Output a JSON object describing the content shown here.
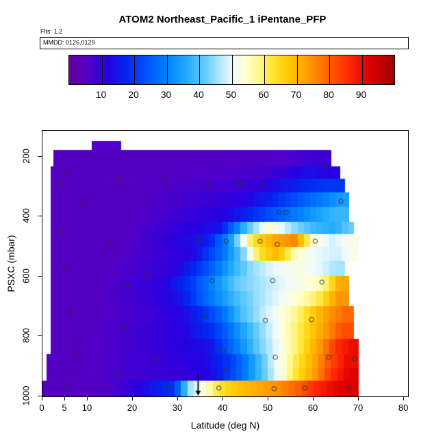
{
  "chart_data": {
    "type": "heatmap",
    "title": "ATOM2 Northeast_Pacific_1 iPentane_PFP",
    "annotations": {
      "flts": "Flts: 1,2",
      "mmdd": "MMDD: 0126,0129"
    },
    "xlabel": "Latitude (deg N)",
    "ylabel": "PSXC (mbar)",
    "xlim": [
      0,
      81.2
    ],
    "ylim": [
      113,
      1005
    ],
    "y_axis_reversed": true,
    "x_ticks": [
      0,
      5,
      10,
      20,
      30,
      40,
      50,
      60,
      70,
      80
    ],
    "y_ticks": [
      200,
      400,
      600,
      800,
      1000
    ],
    "grid": false,
    "legend_position": "top",
    "colorbar": {
      "ticks": [
        10,
        20,
        30,
        40,
        50,
        60,
        70,
        80,
        90
      ],
      "domain": [
        0,
        100
      ],
      "stops": [
        [
          0,
          "#64009B"
        ],
        [
          6,
          "#5000C8"
        ],
        [
          12,
          "#2800E1"
        ],
        [
          18,
          "#0028F0"
        ],
        [
          24,
          "#0055FF"
        ],
        [
          30,
          "#0080FF"
        ],
        [
          36,
          "#22AAFF"
        ],
        [
          42,
          "#66CCFF"
        ],
        [
          46,
          "#A8E4FF"
        ],
        [
          50,
          "#EEFAFF"
        ],
        [
          54,
          "#FFFFD8"
        ],
        [
          58,
          "#FFF890"
        ],
        [
          63,
          "#FFE228"
        ],
        [
          68,
          "#FFC400"
        ],
        [
          74,
          "#FF9800"
        ],
        [
          80,
          "#FF6000"
        ],
        [
          86,
          "#FF2800"
        ],
        [
          92,
          "#E10000"
        ],
        [
          100,
          "#9E0000"
        ]
      ]
    },
    "bands_format": "[pressure_top_mbar, pressure_bottom_mbar, runs[[lat_start_degN, lat_end_degN, value_0_100], ...]]",
    "bands": [
      [
        150,
        180,
        [
          [
            11,
            17.5,
            6
          ]
        ]
      ],
      [
        180,
        235,
        [
          [
            2.5,
            50,
            5
          ],
          [
            50,
            57,
            6
          ],
          [
            57,
            64,
            9
          ]
        ]
      ],
      [
        235,
        275,
        [
          [
            2,
            44,
            5
          ],
          [
            44,
            51,
            7
          ],
          [
            51,
            57,
            11
          ],
          [
            57,
            62,
            14
          ],
          [
            62,
            66,
            12
          ]
        ]
      ],
      [
        275,
        320,
        [
          [
            2,
            42,
            5
          ],
          [
            42,
            49,
            9
          ],
          [
            49,
            55,
            14
          ],
          [
            55,
            61,
            18
          ],
          [
            61,
            67,
            20
          ]
        ]
      ],
      [
        320,
        370,
        [
          [
            2,
            40,
            5
          ],
          [
            40,
            47,
            11
          ],
          [
            47,
            54,
            17
          ],
          [
            54,
            60,
            24
          ],
          [
            60,
            65,
            30
          ],
          [
            65,
            68,
            34
          ]
        ]
      ],
      [
        370,
        420,
        [
          [
            2,
            38,
            5
          ],
          [
            38,
            45,
            13
          ],
          [
            45,
            51,
            20
          ],
          [
            51,
            57,
            27
          ],
          [
            57,
            62,
            33
          ],
          [
            62,
            68,
            38
          ]
        ]
      ],
      [
        420,
        460,
        [
          [
            2,
            36,
            5
          ],
          [
            36,
            43,
            15
          ],
          [
            43,
            48,
            40
          ],
          [
            48,
            53,
            55
          ],
          [
            53,
            58,
            45
          ],
          [
            58,
            63,
            38
          ],
          [
            63,
            67,
            36
          ],
          [
            67,
            69,
            42
          ]
        ]
      ],
      [
        460,
        505,
        [
          [
            2,
            34,
            5
          ],
          [
            34,
            40,
            16
          ],
          [
            40,
            44,
            35
          ],
          [
            44,
            49,
            62
          ],
          [
            49,
            54,
            72
          ],
          [
            54,
            58,
            76
          ],
          [
            58,
            62,
            55
          ],
          [
            62,
            66,
            48
          ],
          [
            66,
            70,
            52
          ]
        ]
      ],
      [
        505,
        550,
        [
          [
            2,
            30,
            5
          ],
          [
            30,
            36,
            12
          ],
          [
            36,
            42,
            25
          ],
          [
            42,
            46,
            40
          ],
          [
            46,
            50,
            62
          ],
          [
            50,
            54,
            70
          ],
          [
            54,
            58,
            56
          ],
          [
            58,
            63,
            50
          ],
          [
            63,
            68,
            48
          ],
          [
            68,
            70,
            53
          ]
        ]
      ],
      [
        550,
        600,
        [
          [
            2,
            26,
            5
          ],
          [
            26,
            33,
            11
          ],
          [
            33,
            39,
            22
          ],
          [
            39,
            44,
            35
          ],
          [
            44,
            49,
            45
          ],
          [
            49,
            54,
            50
          ],
          [
            54,
            59,
            53
          ],
          [
            59,
            63,
            50
          ],
          [
            63,
            67,
            46
          ]
        ]
      ],
      [
        600,
        650,
        [
          [
            2,
            23,
            5
          ],
          [
            23,
            30,
            11
          ],
          [
            30,
            36,
            20
          ],
          [
            36,
            41,
            32
          ],
          [
            41,
            46,
            42
          ],
          [
            46,
            51,
            46
          ],
          [
            51,
            56,
            50
          ],
          [
            56,
            60,
            53
          ],
          [
            60,
            64,
            56
          ],
          [
            64,
            68,
            72
          ]
        ]
      ],
      [
        650,
        700,
        [
          [
            2,
            21,
            5
          ],
          [
            21,
            28,
            10
          ],
          [
            28,
            34,
            15
          ],
          [
            34,
            40,
            28
          ],
          [
            40,
            45,
            38
          ],
          [
            45,
            50,
            45
          ],
          [
            50,
            55,
            50
          ],
          [
            55,
            59,
            55
          ],
          [
            59,
            63,
            60
          ],
          [
            63,
            68,
            74
          ]
        ]
      ],
      [
        700,
        755,
        [
          [
            2,
            20,
            5
          ],
          [
            20,
            29,
            9
          ],
          [
            29,
            36,
            14
          ],
          [
            36,
            42,
            25
          ],
          [
            42,
            47,
            40
          ],
          [
            47,
            52,
            48
          ],
          [
            52,
            57,
            55
          ],
          [
            57,
            61,
            64
          ],
          [
            61,
            65,
            73
          ],
          [
            65,
            69,
            79
          ]
        ]
      ],
      [
        755,
        810,
        [
          [
            2,
            18,
            5
          ],
          [
            18,
            27,
            9
          ],
          [
            27,
            35,
            12
          ],
          [
            35,
            42,
            20
          ],
          [
            42,
            47,
            35
          ],
          [
            47,
            52,
            46
          ],
          [
            52,
            56,
            55
          ],
          [
            56,
            60,
            63
          ],
          [
            60,
            64,
            72
          ],
          [
            64,
            69,
            82
          ]
        ]
      ],
      [
        810,
        860,
        [
          [
            2,
            16,
            5
          ],
          [
            16,
            24,
            8
          ],
          [
            24,
            33,
            11
          ],
          [
            33,
            41,
            14
          ],
          [
            41,
            46,
            30
          ],
          [
            46,
            50,
            42
          ],
          [
            50,
            54,
            50
          ],
          [
            54,
            59,
            60
          ],
          [
            59,
            63,
            72
          ],
          [
            63,
            67,
            85
          ],
          [
            67,
            70,
            90
          ]
        ]
      ],
      [
        860,
        910,
        [
          [
            1,
            15,
            5
          ],
          [
            15,
            24,
            8
          ],
          [
            24,
            33,
            10
          ],
          [
            33,
            40,
            13
          ],
          [
            40,
            45,
            22
          ],
          [
            45,
            49,
            35
          ],
          [
            49,
            53,
            48
          ],
          [
            53,
            57,
            58
          ],
          [
            57,
            61,
            68
          ],
          [
            61,
            65,
            80
          ],
          [
            65,
            70,
            90
          ]
        ]
      ],
      [
        910,
        950,
        [
          [
            1,
            14,
            5
          ],
          [
            14,
            25,
            8
          ],
          [
            25,
            34,
            10
          ],
          [
            34,
            41,
            13
          ],
          [
            41,
            46,
            25
          ],
          [
            46,
            50,
            38
          ],
          [
            50,
            54,
            50
          ],
          [
            54,
            58,
            62
          ],
          [
            58,
            62,
            72
          ],
          [
            62,
            66,
            85
          ],
          [
            66,
            70,
            92
          ]
        ]
      ],
      [
        950,
        1005,
        [
          [
            0,
            28,
            5
          ],
          [
            28,
            31,
            20
          ],
          [
            31,
            34,
            45
          ],
          [
            34,
            37,
            52
          ],
          [
            37,
            41,
            62
          ],
          [
            41,
            46,
            68
          ],
          [
            46,
            51,
            72
          ],
          [
            51,
            56,
            76
          ],
          [
            56,
            60,
            82
          ],
          [
            60,
            64,
            88
          ],
          [
            64,
            70,
            93
          ]
        ]
      ]
    ],
    "points_format": "[latitude_degN, pressure_mbar] open circles = sample locations",
    "points": [
      [
        5.2,
        257
      ],
      [
        3.8,
        291
      ],
      [
        8.9,
        360
      ],
      [
        4.1,
        451
      ],
      [
        5.2,
        577
      ],
      [
        6.1,
        719
      ],
      [
        7,
        858
      ],
      [
        5.2,
        966
      ],
      [
        16.8,
        278
      ],
      [
        15,
        490
      ],
      [
        18.8,
        632
      ],
      [
        18,
        776
      ],
      [
        16.5,
        925
      ],
      [
        27.1,
        278
      ],
      [
        23.3,
        602
      ],
      [
        25.3,
        877
      ],
      [
        28.3,
        973
      ],
      [
        37,
        296
      ],
      [
        44,
        293
      ],
      [
        34.7,
        479
      ],
      [
        40.8,
        484
      ],
      [
        37.7,
        616
      ],
      [
        36.2,
        735
      ],
      [
        40,
        849
      ],
      [
        40.8,
        913
      ],
      [
        39.2,
        975
      ],
      [
        48.8,
        298
      ],
      [
        48.3,
        484
      ],
      [
        52.1,
        495
      ],
      [
        51.1,
        616
      ],
      [
        49.5,
        749
      ],
      [
        51.7,
        872
      ],
      [
        51.4,
        977
      ],
      [
        52.6,
        388
      ],
      [
        54.1,
        388
      ],
      [
        60.5,
        484
      ],
      [
        62,
        621
      ],
      [
        59.7,
        746
      ],
      [
        63.5,
        872
      ],
      [
        58.2,
        975
      ],
      [
        62.7,
        234
      ],
      [
        66.2,
        351
      ],
      [
        69.2,
        877
      ],
      [
        68,
        975
      ]
    ],
    "arrow": {
      "lat": 34.6,
      "p_start": 928,
      "p_end": 1000
    }
  }
}
